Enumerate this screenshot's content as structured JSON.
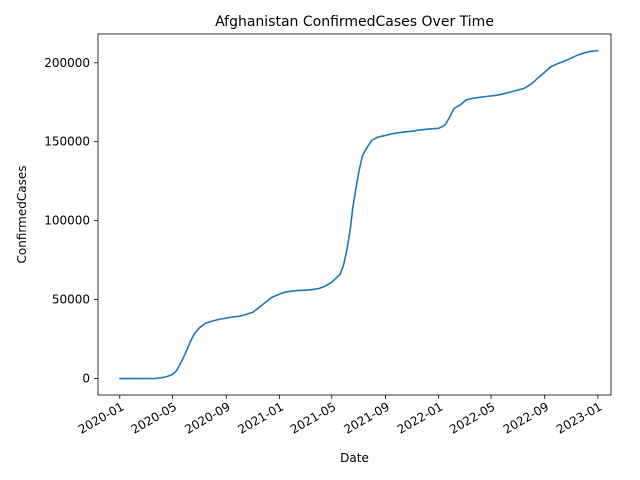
{
  "chart_data": {
    "type": "line",
    "title": "Afghanistan  ConfirmedCases Over Time",
    "xlabel": "Date",
    "ylabel": "ConfirmedCases",
    "grid": false,
    "legend": "none",
    "line_color": "#1f77b4",
    "xlim": [
      "2019-11-12",
      "2023-01-31"
    ],
    "ylim": [
      -10392,
      218232
    ],
    "x_ticks": [
      "2020-01",
      "2020-05",
      "2020-09",
      "2021-01",
      "2021-05",
      "2021-09",
      "2022-01",
      "2022-05",
      "2022-09",
      "2023-01"
    ],
    "y_ticks": [
      {
        "value": 0,
        "label": "0"
      },
      {
        "value": 50000,
        "label": "50000"
      },
      {
        "value": 100000,
        "label": "100000"
      },
      {
        "value": 150000,
        "label": "150000"
      },
      {
        "value": 200000,
        "label": "200000"
      }
    ],
    "series": [
      {
        "points": [
          [
            "2020-01-01",
            0
          ],
          [
            "2020-02-01",
            0
          ],
          [
            "2020-03-01",
            0
          ],
          [
            "2020-03-25",
            100
          ],
          [
            "2020-04-15",
            1000
          ],
          [
            "2020-04-30",
            2500
          ],
          [
            "2020-05-10",
            5000
          ],
          [
            "2020-05-20",
            10000
          ],
          [
            "2020-06-01",
            17000
          ],
          [
            "2020-06-10",
            23000
          ],
          [
            "2020-06-20",
            28500
          ],
          [
            "2020-07-01",
            32000
          ],
          [
            "2020-07-15",
            35000
          ],
          [
            "2020-08-01",
            36500
          ],
          [
            "2020-08-15",
            37500
          ],
          [
            "2020-09-01",
            38300
          ],
          [
            "2020-09-15",
            39000
          ],
          [
            "2020-10-01",
            39500
          ],
          [
            "2020-10-15",
            40500
          ],
          [
            "2020-11-01",
            42000
          ],
          [
            "2020-11-15",
            45000
          ],
          [
            "2020-12-01",
            48500
          ],
          [
            "2020-12-15",
            51500
          ],
          [
            "2021-01-01",
            53500
          ],
          [
            "2021-01-15",
            54800
          ],
          [
            "2021-02-01",
            55500
          ],
          [
            "2021-02-15",
            55800
          ],
          [
            "2021-03-01",
            56000
          ],
          [
            "2021-03-15",
            56300
          ],
          [
            "2021-04-01",
            57000
          ],
          [
            "2021-04-15",
            58500
          ],
          [
            "2021-05-01",
            61000
          ],
          [
            "2021-05-10",
            63500
          ],
          [
            "2021-05-20",
            66000
          ],
          [
            "2021-05-28",
            72000
          ],
          [
            "2021-06-05",
            82000
          ],
          [
            "2021-06-12",
            94000
          ],
          [
            "2021-06-18",
            108000
          ],
          [
            "2021-06-25",
            120000
          ],
          [
            "2021-07-02",
            131000
          ],
          [
            "2021-07-10",
            141000
          ],
          [
            "2021-07-20",
            146000
          ],
          [
            "2021-08-01",
            151000
          ],
          [
            "2021-08-15",
            153000
          ],
          [
            "2021-09-01",
            154000
          ],
          [
            "2021-09-15",
            155000
          ],
          [
            "2021-10-01",
            155700
          ],
          [
            "2021-10-15",
            156200
          ],
          [
            "2021-11-01",
            156700
          ],
          [
            "2021-11-15",
            157300
          ],
          [
            "2021-12-01",
            157800
          ],
          [
            "2021-12-15",
            158200
          ],
          [
            "2022-01-01",
            158500
          ],
          [
            "2022-01-15",
            160500
          ],
          [
            "2022-01-25",
            165000
          ],
          [
            "2022-02-05",
            171000
          ],
          [
            "2022-02-20",
            173500
          ],
          [
            "2022-03-05",
            176500
          ],
          [
            "2022-03-20",
            177500
          ],
          [
            "2022-04-01",
            178000
          ],
          [
            "2022-04-15",
            178500
          ],
          [
            "2022-05-01",
            179000
          ],
          [
            "2022-05-15",
            179500
          ],
          [
            "2022-06-01",
            180500
          ],
          [
            "2022-06-15",
            181500
          ],
          [
            "2022-07-01",
            182700
          ],
          [
            "2022-07-15",
            183700
          ],
          [
            "2022-08-01",
            186500
          ],
          [
            "2022-08-15",
            190000
          ],
          [
            "2022-09-01",
            194000
          ],
          [
            "2022-09-15",
            197500
          ],
          [
            "2022-10-01",
            199500
          ],
          [
            "2022-10-15",
            201000
          ],
          [
            "2022-11-01",
            203000
          ],
          [
            "2022-11-15",
            204800
          ],
          [
            "2022-12-01",
            206300
          ],
          [
            "2022-12-15",
            207200
          ],
          [
            "2023-01-01",
            207700
          ]
        ]
      }
    ]
  }
}
